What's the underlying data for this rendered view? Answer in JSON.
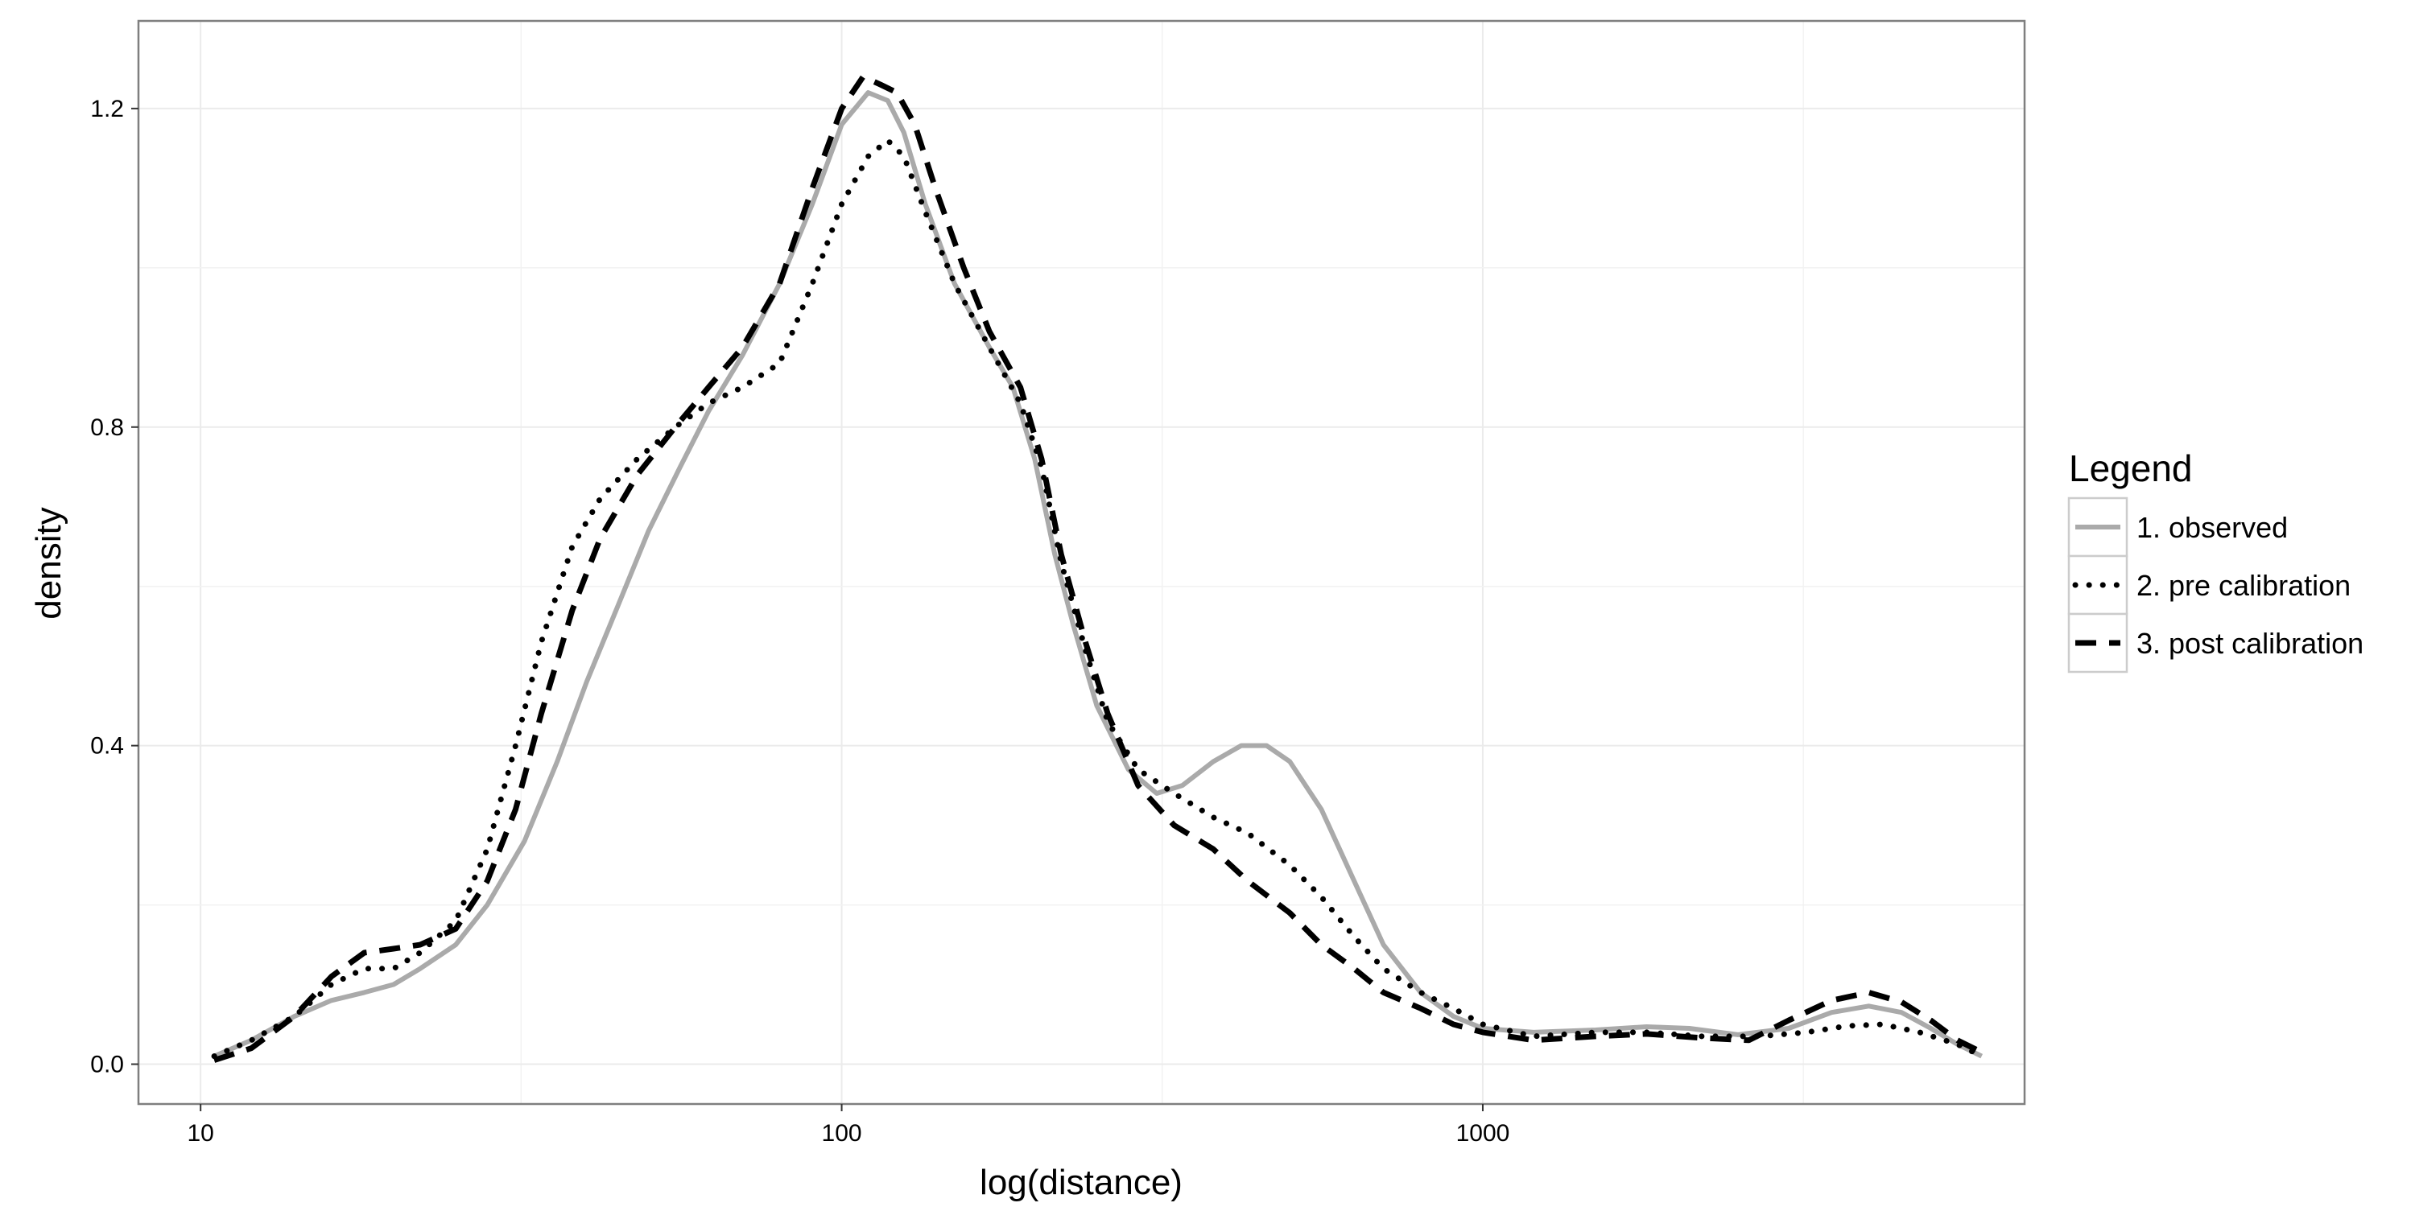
{
  "chart_data": {
    "type": "line",
    "title": "",
    "xlabel": "log(distance)",
    "ylabel": "density",
    "x_scale": "log10",
    "xlim": [
      8.0,
      7000
    ],
    "ylim": [
      -0.05,
      1.31
    ],
    "x_ticks": [
      10,
      100,
      1000
    ],
    "x_tick_labels": [
      "10",
      "100",
      "1000"
    ],
    "y_ticks": [
      0.0,
      0.4,
      0.8,
      1.2
    ],
    "y_tick_labels": [
      "0.0",
      "0.4",
      "0.8",
      "1.2"
    ],
    "grid": true,
    "legend": {
      "title": "Legend",
      "placement": "right"
    },
    "series": [
      {
        "name": "1. observed",
        "style": "solid",
        "color": "#aaaaaa",
        "points": [
          [
            10.5,
            0.01
          ],
          [
            12,
            0.03
          ],
          [
            14,
            0.06
          ],
          [
            16,
            0.08
          ],
          [
            18,
            0.09
          ],
          [
            20,
            0.1
          ],
          [
            22,
            0.12
          ],
          [
            25,
            0.15
          ],
          [
            28,
            0.2
          ],
          [
            32,
            0.28
          ],
          [
            36,
            0.38
          ],
          [
            40,
            0.48
          ],
          [
            45,
            0.58
          ],
          [
            50,
            0.67
          ],
          [
            56,
            0.75
          ],
          [
            62,
            0.82
          ],
          [
            70,
            0.89
          ],
          [
            80,
            0.98
          ],
          [
            90,
            1.08
          ],
          [
            100,
            1.18
          ],
          [
            110,
            1.22
          ],
          [
            118,
            1.21
          ],
          [
            125,
            1.17
          ],
          [
            135,
            1.08
          ],
          [
            150,
            0.98
          ],
          [
            170,
            0.9
          ],
          [
            185,
            0.85
          ],
          [
            200,
            0.76
          ],
          [
            215,
            0.64
          ],
          [
            230,
            0.55
          ],
          [
            250,
            0.45
          ],
          [
            280,
            0.37
          ],
          [
            310,
            0.34
          ],
          [
            340,
            0.35
          ],
          [
            380,
            0.38
          ],
          [
            420,
            0.4
          ],
          [
            460,
            0.4
          ],
          [
            500,
            0.38
          ],
          [
            560,
            0.32
          ],
          [
            630,
            0.23
          ],
          [
            700,
            0.15
          ],
          [
            800,
            0.09
          ],
          [
            900,
            0.06
          ],
          [
            1000,
            0.045
          ],
          [
            1200,
            0.04
          ],
          [
            1500,
            0.043
          ],
          [
            1800,
            0.047
          ],
          [
            2100,
            0.045
          ],
          [
            2500,
            0.037
          ],
          [
            3000,
            0.045
          ],
          [
            3500,
            0.065
          ],
          [
            4000,
            0.073
          ],
          [
            4500,
            0.065
          ],
          [
            5000,
            0.045
          ],
          [
            5500,
            0.025
          ],
          [
            6000,
            0.01
          ]
        ]
      },
      {
        "name": "2. pre calibration",
        "style": "dotted",
        "color": "#000000",
        "points": [
          [
            10.5,
            0.01
          ],
          [
            12,
            0.03
          ],
          [
            14,
            0.06
          ],
          [
            16,
            0.1
          ],
          [
            18,
            0.12
          ],
          [
            20,
            0.12
          ],
          [
            22,
            0.14
          ],
          [
            25,
            0.18
          ],
          [
            28,
            0.27
          ],
          [
            31,
            0.4
          ],
          [
            34,
            0.53
          ],
          [
            38,
            0.65
          ],
          [
            42,
            0.71
          ],
          [
            48,
            0.76
          ],
          [
            55,
            0.8
          ],
          [
            62,
            0.83
          ],
          [
            70,
            0.85
          ],
          [
            80,
            0.88
          ],
          [
            90,
            0.98
          ],
          [
            100,
            1.08
          ],
          [
            110,
            1.14
          ],
          [
            118,
            1.16
          ],
          [
            125,
            1.14
          ],
          [
            135,
            1.07
          ],
          [
            150,
            0.98
          ],
          [
            170,
            0.9
          ],
          [
            190,
            0.83
          ],
          [
            205,
            0.75
          ],
          [
            220,
            0.63
          ],
          [
            240,
            0.52
          ],
          [
            260,
            0.43
          ],
          [
            290,
            0.37
          ],
          [
            330,
            0.34
          ],
          [
            380,
            0.31
          ],
          [
            430,
            0.29
          ],
          [
            500,
            0.25
          ],
          [
            560,
            0.21
          ],
          [
            630,
            0.16
          ],
          [
            700,
            0.12
          ],
          [
            800,
            0.09
          ],
          [
            900,
            0.07
          ],
          [
            1000,
            0.05
          ],
          [
            1200,
            0.035
          ],
          [
            1500,
            0.04
          ],
          [
            1800,
            0.04
          ],
          [
            2200,
            0.035
          ],
          [
            2700,
            0.035
          ],
          [
            3200,
            0.04
          ],
          [
            3700,
            0.048
          ],
          [
            4200,
            0.05
          ],
          [
            4800,
            0.04
          ],
          [
            5500,
            0.025
          ],
          [
            6000,
            0.01
          ]
        ]
      },
      {
        "name": "3. post calibration",
        "style": "dashed",
        "color": "#000000",
        "points": [
          [
            10.5,
            0.005
          ],
          [
            12,
            0.02
          ],
          [
            14,
            0.06
          ],
          [
            16,
            0.11
          ],
          [
            18,
            0.14
          ],
          [
            20,
            0.145
          ],
          [
            22,
            0.15
          ],
          [
            25,
            0.17
          ],
          [
            28,
            0.23
          ],
          [
            31,
            0.32
          ],
          [
            34,
            0.44
          ],
          [
            38,
            0.57
          ],
          [
            42,
            0.66
          ],
          [
            48,
            0.74
          ],
          [
            55,
            0.8
          ],
          [
            62,
            0.85
          ],
          [
            70,
            0.9
          ],
          [
            80,
            0.98
          ],
          [
            90,
            1.1
          ],
          [
            100,
            1.2
          ],
          [
            108,
            1.24
          ],
          [
            115,
            1.23
          ],
          [
            122,
            1.22
          ],
          [
            130,
            1.18
          ],
          [
            140,
            1.1
          ],
          [
            155,
            1.0
          ],
          [
            170,
            0.92
          ],
          [
            190,
            0.85
          ],
          [
            205,
            0.76
          ],
          [
            220,
            0.64
          ],
          [
            240,
            0.53
          ],
          [
            260,
            0.44
          ],
          [
            290,
            0.35
          ],
          [
            330,
            0.3
          ],
          [
            380,
            0.27
          ],
          [
            430,
            0.23
          ],
          [
            500,
            0.19
          ],
          [
            560,
            0.15
          ],
          [
            630,
            0.12
          ],
          [
            700,
            0.09
          ],
          [
            800,
            0.07
          ],
          [
            900,
            0.05
          ],
          [
            1000,
            0.04
          ],
          [
            1200,
            0.03
          ],
          [
            1500,
            0.035
          ],
          [
            1800,
            0.038
          ],
          [
            2200,
            0.033
          ],
          [
            2600,
            0.03
          ],
          [
            3000,
            0.055
          ],
          [
            3500,
            0.08
          ],
          [
            4000,
            0.09
          ],
          [
            4500,
            0.078
          ],
          [
            5000,
            0.055
          ],
          [
            5500,
            0.03
          ],
          [
            6000,
            0.015
          ]
        ]
      }
    ]
  }
}
